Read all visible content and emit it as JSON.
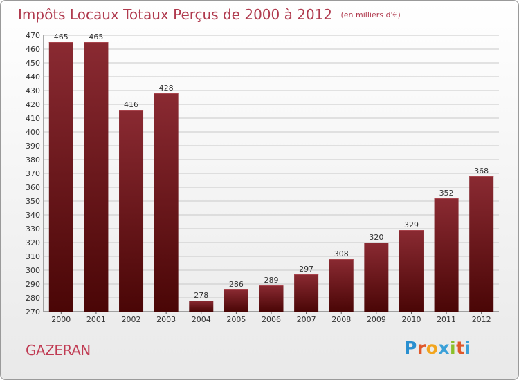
{
  "header": {
    "title": "Impôts Locaux Totaux Perçus de 2000 à 2012",
    "unit_note": "(en milliers d'€)"
  },
  "footer": {
    "town": "GAZERAN",
    "brand": "Proxiti"
  },
  "colors": {
    "title": "#b03a4e",
    "bar_top": "#8a2a32",
    "bar_bottom": "#4a0606",
    "grid": "#c8c8c8"
  },
  "chart_data": {
    "type": "bar",
    "categories": [
      "2000",
      "2001",
      "2002",
      "2003",
      "2004",
      "2005",
      "2006",
      "2007",
      "2008",
      "2009",
      "2010",
      "2011",
      "2012"
    ],
    "values": [
      465,
      465,
      416,
      428,
      278,
      286,
      289,
      297,
      308,
      320,
      329,
      352,
      368
    ],
    "ylim": [
      270,
      470
    ],
    "yticks": [
      270,
      280,
      290,
      300,
      310,
      320,
      330,
      340,
      350,
      360,
      370,
      380,
      390,
      400,
      410,
      420,
      430,
      440,
      450,
      460,
      470
    ],
    "grid": true,
    "data_labels": true
  }
}
